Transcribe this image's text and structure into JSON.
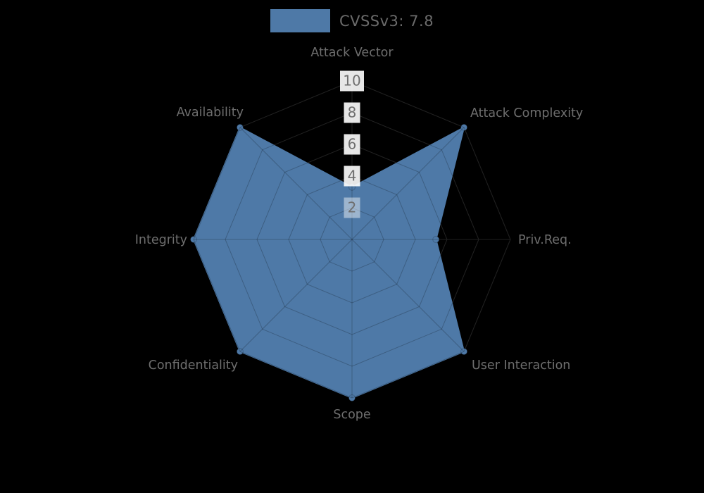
{
  "legend": {
    "label": "CVSSv3: 7.8",
    "swatch_color": "#4E79A7"
  },
  "chart_data": {
    "type": "radar",
    "title": "CVSSv3: 7.8",
    "categories": [
      "Attack Vector",
      "Attack Complexity",
      "Priv.Req.",
      "User Interaction",
      "Scope",
      "Confidentiality",
      "Integrity",
      "Availability"
    ],
    "series": [
      {
        "name": "CVSSv3: 7.8",
        "values": [
          3.3,
          10,
          5.3,
          10,
          10,
          10,
          10,
          10
        ]
      }
    ],
    "ticks": [
      2,
      4,
      6,
      8,
      10
    ],
    "rmin": 0,
    "rmax": 10,
    "grid": "on",
    "grid_shape": "polygon",
    "legend_position": "top",
    "fill_color": "#4E79A7",
    "fill_opacity": 1,
    "grid_line_color_over_fill": "rgba(0,0,0,0.22)",
    "grid_line_color_on_background": "#2b2b2b",
    "axis_label_color": "#6e6e6e",
    "tick_label_color": "#6e6e6e",
    "tick_backdrop_color": "#ffffff",
    "background_color": "#000000"
  }
}
